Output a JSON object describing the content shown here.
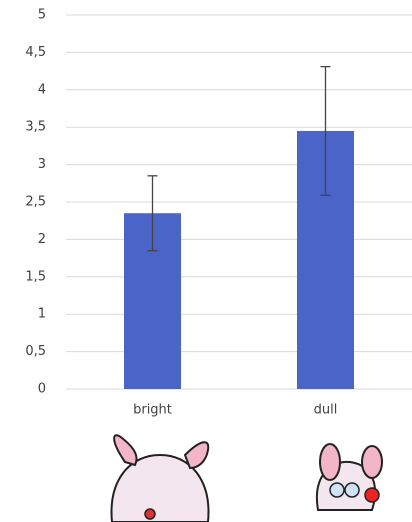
{
  "chart_data": {
    "type": "bar",
    "categories": [
      "bright",
      "dull"
    ],
    "values": [
      2.35,
      3.45
    ],
    "errors": [
      0.5,
      0.86
    ],
    "color": "#4a64c8",
    "ylim": [
      0,
      5
    ],
    "yticks": [
      0,
      {
        "value": 0.5,
        "label": "0,5"
      },
      1,
      {
        "value": 1.5,
        "label": "1,5"
      },
      2,
      {
        "value": 2.5,
        "label": "2,5"
      },
      3,
      {
        "value": 3.5,
        "label": "3,5"
      },
      4,
      {
        "value": 4.5,
        "label": "4,5"
      },
      5
    ],
    "grid": true
  }
}
